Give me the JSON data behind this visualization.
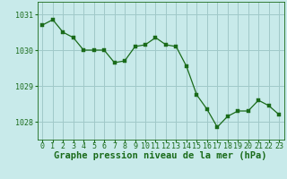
{
  "x": [
    0,
    1,
    2,
    3,
    4,
    5,
    6,
    7,
    8,
    9,
    10,
    11,
    12,
    13,
    14,
    15,
    16,
    17,
    18,
    19,
    20,
    21,
    22,
    23
  ],
  "y": [
    1030.7,
    1030.85,
    1030.5,
    1030.35,
    1030.0,
    1030.0,
    1030.0,
    1029.65,
    1029.7,
    1030.1,
    1030.15,
    1030.35,
    1030.15,
    1030.1,
    1029.55,
    1028.75,
    1028.35,
    1027.85,
    1028.15,
    1028.3,
    1028.3,
    1028.6,
    1028.45,
    1028.2
  ],
  "line_color": "#1a6b1a",
  "marker_color": "#1a6b1a",
  "bg_color": "#c8eaea",
  "grid_color": "#a0c8c8",
  "axis_label_color": "#1a6b1a",
  "tick_color": "#1a6b1a",
  "ylabel_ticks": [
    1028,
    1029,
    1030,
    1031
  ],
  "xlabel": "Graphe pression niveau de la mer (hPa)",
  "ylim": [
    1027.5,
    1031.35
  ],
  "xlim": [
    -0.5,
    23.5
  ],
  "label_fontsize": 7.5,
  "tick_fontsize": 6.0
}
